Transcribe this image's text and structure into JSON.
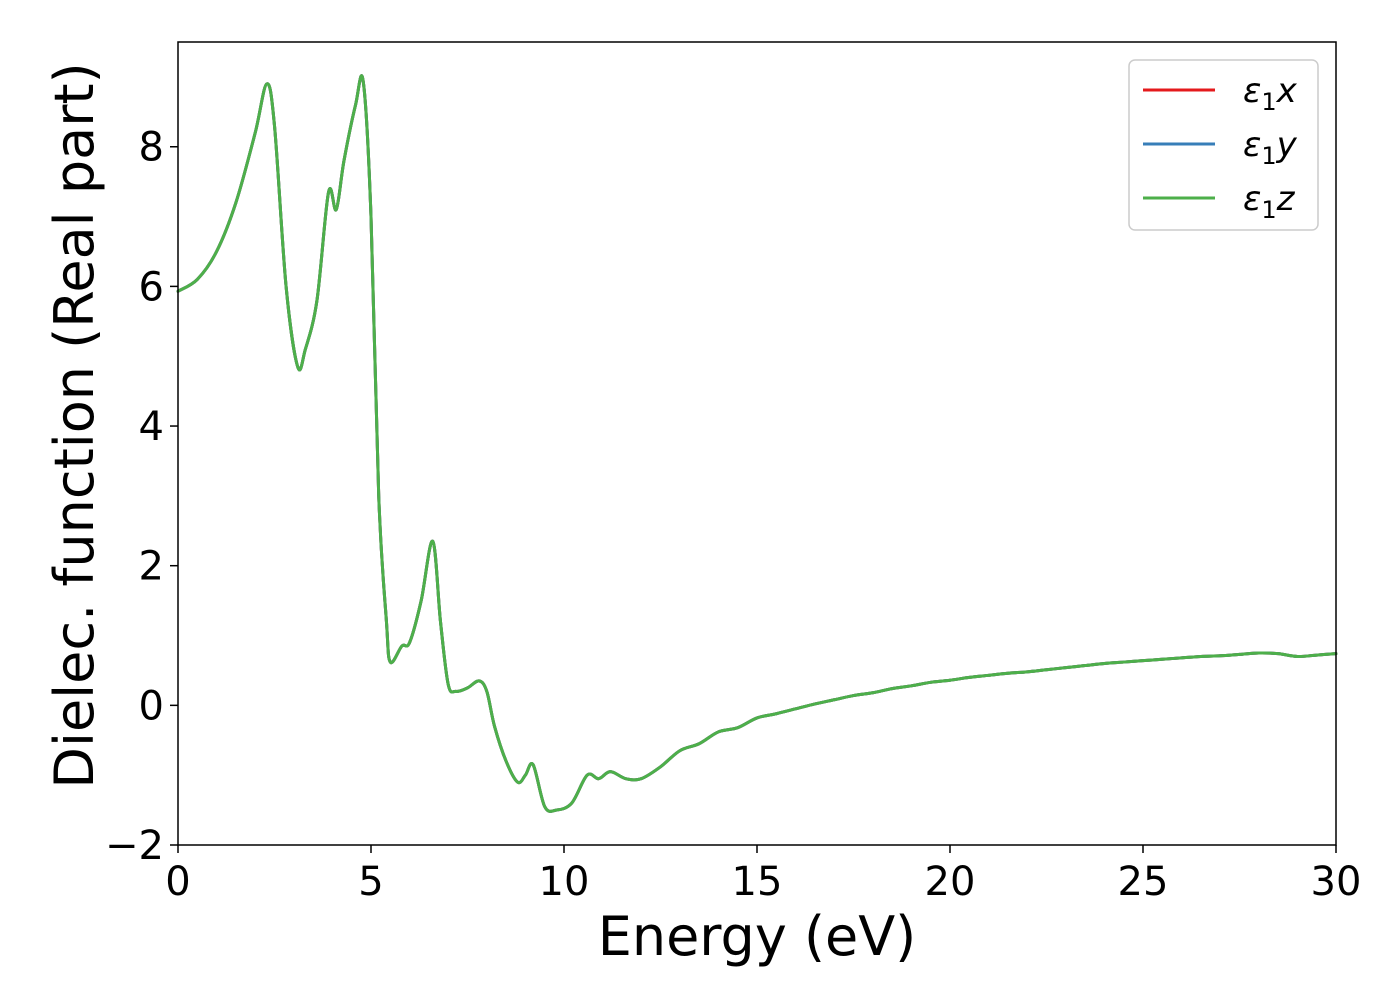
{
  "chart_data": {
    "type": "line",
    "title": "",
    "xlabel": "Energy (eV)",
    "ylabel": "Dielec. function (Real part)",
    "xlim": [
      0,
      30
    ],
    "ylim": [
      -2,
      9.5
    ],
    "xticks": [
      0,
      5,
      10,
      15,
      20,
      25,
      30
    ],
    "xtick_labels": [
      "0",
      "5",
      "10",
      "15",
      "20",
      "25",
      "30"
    ],
    "yticks": [
      -2,
      0,
      2,
      4,
      6,
      8
    ],
    "ytick_labels": [
      "−2",
      "0",
      "2",
      "4",
      "6",
      "8"
    ],
    "grid": false,
    "legend_position": "top-right",
    "series": [
      {
        "name": "ε1x",
        "legend_base": "ε",
        "legend_sub": "1",
        "legend_tail": "x",
        "color": "#e41a1c",
        "x": [
          0,
          0.5,
          1.0,
          1.5,
          2.0,
          2.3,
          2.5,
          2.8,
          3.1,
          3.3,
          3.6,
          3.9,
          4.1,
          4.3,
          4.6,
          4.8,
          5.0,
          5.2,
          5.4,
          5.5,
          5.8,
          6.0,
          6.3,
          6.6,
          6.8,
          7.0,
          7.2,
          7.5,
          7.8,
          8.0,
          8.2,
          8.5,
          8.8,
          9.0,
          9.2,
          9.5,
          9.8,
          10.2,
          10.6,
          10.9,
          11.2,
          11.6,
          12.0,
          12.5,
          13.0,
          13.5,
          14.0,
          14.5,
          15.0,
          15.5,
          16.0,
          16.5,
          17.0,
          17.5,
          18.0,
          18.5,
          19.0,
          19.5,
          20.0,
          20.5,
          21.0,
          21.5,
          22.0,
          22.5,
          23.0,
          23.5,
          24.0,
          24.5,
          25.0,
          25.5,
          26.0,
          26.5,
          27.0,
          27.5,
          28.0,
          28.5,
          29.0,
          29.5,
          30.0
        ],
        "y": [
          5.93,
          6.1,
          6.5,
          7.2,
          8.2,
          8.9,
          8.3,
          6.0,
          4.85,
          5.1,
          5.8,
          7.35,
          7.1,
          7.8,
          8.6,
          8.93,
          7.0,
          3.0,
          1.2,
          0.62,
          0.85,
          0.9,
          1.5,
          2.35,
          1.2,
          0.3,
          0.2,
          0.25,
          0.35,
          0.2,
          -0.3,
          -0.8,
          -1.1,
          -1.0,
          -0.85,
          -1.45,
          -1.5,
          -1.4,
          -1.0,
          -1.05,
          -0.95,
          -1.05,
          -1.05,
          -0.88,
          -0.65,
          -0.55,
          -0.38,
          -0.32,
          -0.18,
          -0.12,
          -0.05,
          0.02,
          0.08,
          0.14,
          0.18,
          0.24,
          0.28,
          0.33,
          0.36,
          0.4,
          0.43,
          0.46,
          0.48,
          0.51,
          0.54,
          0.57,
          0.6,
          0.62,
          0.64,
          0.66,
          0.68,
          0.7,
          0.71,
          0.73,
          0.75,
          0.74,
          0.7,
          0.72,
          0.74
        ]
      },
      {
        "name": "ε1y",
        "legend_base": "ε",
        "legend_sub": "1",
        "legend_tail": "y",
        "color": "#377eb8",
        "x": [
          0,
          0.5,
          1.0,
          1.5,
          2.0,
          2.3,
          2.5,
          2.8,
          3.1,
          3.3,
          3.6,
          3.9,
          4.1,
          4.3,
          4.6,
          4.8,
          5.0,
          5.2,
          5.4,
          5.5,
          5.8,
          6.0,
          6.3,
          6.6,
          6.8,
          7.0,
          7.2,
          7.5,
          7.8,
          8.0,
          8.2,
          8.5,
          8.8,
          9.0,
          9.2,
          9.5,
          9.8,
          10.2,
          10.6,
          10.9,
          11.2,
          11.6,
          12.0,
          12.5,
          13.0,
          13.5,
          14.0,
          14.5,
          15.0,
          15.5,
          16.0,
          16.5,
          17.0,
          17.5,
          18.0,
          18.5,
          19.0,
          19.5,
          20.0,
          20.5,
          21.0,
          21.5,
          22.0,
          22.5,
          23.0,
          23.5,
          24.0,
          24.5,
          25.0,
          25.5,
          26.0,
          26.5,
          27.0,
          27.5,
          28.0,
          28.5,
          29.0,
          29.5,
          30.0
        ],
        "y": [
          5.93,
          6.1,
          6.5,
          7.2,
          8.2,
          8.9,
          8.3,
          6.0,
          4.85,
          5.1,
          5.8,
          7.35,
          7.1,
          7.8,
          8.6,
          8.93,
          7.0,
          3.0,
          1.2,
          0.62,
          0.85,
          0.9,
          1.5,
          2.35,
          1.2,
          0.3,
          0.2,
          0.25,
          0.35,
          0.2,
          -0.3,
          -0.8,
          -1.1,
          -1.0,
          -0.85,
          -1.45,
          -1.5,
          -1.4,
          -1.0,
          -1.05,
          -0.95,
          -1.05,
          -1.05,
          -0.88,
          -0.65,
          -0.55,
          -0.38,
          -0.32,
          -0.18,
          -0.12,
          -0.05,
          0.02,
          0.08,
          0.14,
          0.18,
          0.24,
          0.28,
          0.33,
          0.36,
          0.4,
          0.43,
          0.46,
          0.48,
          0.51,
          0.54,
          0.57,
          0.6,
          0.62,
          0.64,
          0.66,
          0.68,
          0.7,
          0.71,
          0.73,
          0.75,
          0.74,
          0.7,
          0.72,
          0.74
        ]
      },
      {
        "name": "ε1z",
        "legend_base": "ε",
        "legend_sub": "1",
        "legend_tail": "z",
        "color": "#4daf4a",
        "x": [
          0,
          0.5,
          1.0,
          1.5,
          2.0,
          2.3,
          2.5,
          2.8,
          3.1,
          3.3,
          3.6,
          3.9,
          4.1,
          4.3,
          4.6,
          4.8,
          5.0,
          5.2,
          5.4,
          5.5,
          5.8,
          6.0,
          6.3,
          6.6,
          6.8,
          7.0,
          7.2,
          7.5,
          7.8,
          8.0,
          8.2,
          8.5,
          8.8,
          9.0,
          9.2,
          9.5,
          9.8,
          10.2,
          10.6,
          10.9,
          11.2,
          11.6,
          12.0,
          12.5,
          13.0,
          13.5,
          14.0,
          14.5,
          15.0,
          15.5,
          16.0,
          16.5,
          17.0,
          17.5,
          18.0,
          18.5,
          19.0,
          19.5,
          20.0,
          20.5,
          21.0,
          21.5,
          22.0,
          22.5,
          23.0,
          23.5,
          24.0,
          24.5,
          25.0,
          25.5,
          26.0,
          26.5,
          27.0,
          27.5,
          28.0,
          28.5,
          29.0,
          29.5,
          30.0
        ],
        "y": [
          5.93,
          6.1,
          6.5,
          7.2,
          8.2,
          8.9,
          8.3,
          6.0,
          4.85,
          5.1,
          5.8,
          7.35,
          7.1,
          7.8,
          8.6,
          8.93,
          7.0,
          3.0,
          1.2,
          0.62,
          0.85,
          0.9,
          1.5,
          2.35,
          1.2,
          0.3,
          0.2,
          0.25,
          0.35,
          0.2,
          -0.3,
          -0.8,
          -1.1,
          -1.0,
          -0.85,
          -1.45,
          -1.5,
          -1.4,
          -1.0,
          -1.05,
          -0.95,
          -1.05,
          -1.05,
          -0.88,
          -0.65,
          -0.55,
          -0.38,
          -0.32,
          -0.18,
          -0.12,
          -0.05,
          0.02,
          0.08,
          0.14,
          0.18,
          0.24,
          0.28,
          0.33,
          0.36,
          0.4,
          0.43,
          0.46,
          0.48,
          0.51,
          0.54,
          0.57,
          0.6,
          0.62,
          0.64,
          0.66,
          0.68,
          0.7,
          0.71,
          0.73,
          0.75,
          0.74,
          0.7,
          0.72,
          0.74
        ]
      }
    ]
  }
}
